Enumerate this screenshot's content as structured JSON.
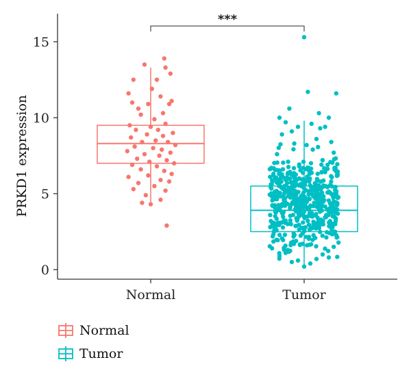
{
  "chart_data": {
    "type": "boxplot",
    "ylabel": "PRKD1 expression",
    "xlabel": "",
    "ylim": [
      0,
      16
    ],
    "yticks": [
      0,
      5,
      10,
      15
    ],
    "categories": [
      "Normal",
      "Tumor"
    ],
    "significance": {
      "label": "***",
      "between": [
        "Normal",
        "Tumor"
      ],
      "y": 16.3
    },
    "series": [
      {
        "name": "Normal",
        "color": "#F8766D",
        "box": {
          "q1": 7.0,
          "median": 8.3,
          "q3": 9.5,
          "whisker_low": 4.3,
          "whisker_high": 13.3
        },
        "points": [
          [
            -0.05,
            13.5
          ],
          [
            0.11,
            13.9
          ],
          [
            -0.14,
            12.5
          ],
          [
            0.12,
            13.3
          ],
          [
            0.05,
            12.5
          ],
          [
            0.16,
            12.9
          ],
          [
            -0.18,
            11.6
          ],
          [
            0.01,
            11.9
          ],
          [
            0.17,
            11.1
          ],
          [
            0.08,
            11.4
          ],
          [
            -0.15,
            11.0
          ],
          [
            -0.02,
            10.9
          ],
          [
            0.15,
            10.9
          ],
          [
            -0.1,
            10.6
          ],
          [
            0.1,
            10.3
          ],
          [
            -0.08,
            10.2
          ],
          [
            0.03,
            9.9
          ],
          [
            -0.17,
            9.5
          ],
          [
            0.12,
            9.6
          ],
          [
            0.0,
            9.4
          ],
          [
            -0.12,
            9.2
          ],
          [
            0.06,
            9.2
          ],
          [
            0.18,
            9.0
          ],
          [
            -0.03,
            8.9
          ],
          [
            0.1,
            8.8
          ],
          [
            -0.16,
            8.7
          ],
          [
            0.04,
            8.5
          ],
          [
            0.14,
            8.4
          ],
          [
            -0.07,
            8.4
          ],
          [
            0.2,
            8.2
          ],
          [
            -0.13,
            8.1
          ],
          [
            0.02,
            8.0
          ],
          [
            0.09,
            7.9
          ],
          [
            -0.19,
            7.8
          ],
          [
            0.16,
            7.7
          ],
          [
            -0.05,
            7.6
          ],
          [
            0.07,
            7.5
          ],
          [
            -0.11,
            7.3
          ],
          [
            0.13,
            7.2
          ],
          [
            -0.01,
            7.1
          ],
          [
            0.19,
            7.0
          ],
          [
            -0.15,
            6.9
          ],
          [
            0.05,
            6.8
          ],
          [
            -0.08,
            6.6
          ],
          [
            0.11,
            6.5
          ],
          [
            0.17,
            6.3
          ],
          [
            -0.02,
            6.2
          ],
          [
            -0.18,
            6.1
          ],
          [
            0.08,
            5.9
          ],
          [
            -0.1,
            5.7
          ],
          [
            0.15,
            5.8
          ],
          [
            0.03,
            5.5
          ],
          [
            -0.14,
            5.3
          ],
          [
            0.12,
            5.2
          ],
          [
            -0.04,
            4.9
          ],
          [
            0.08,
            4.6
          ],
          [
            -0.07,
            4.4
          ],
          [
            0.0,
            4.3
          ],
          [
            0.13,
            2.9
          ]
        ]
      },
      {
        "name": "Tumor",
        "color": "#00BFC4",
        "box": {
          "q1": 2.5,
          "median": 3.9,
          "q3": 5.5,
          "whisker_low": 0.1,
          "whisker_high": 9.8
        },
        "points": [
          [
            0.0,
            15.3
          ],
          [
            0.03,
            11.7
          ],
          [
            0.26,
            11.6
          ],
          [
            -0.12,
            10.6
          ],
          [
            0.12,
            10.3
          ],
          [
            -0.2,
            10.0
          ],
          [
            0.2,
            10.0
          ],
          [
            -0.15,
            9.7
          ],
          [
            0.06,
            9.6
          ],
          [
            -0.05,
            9.4
          ],
          [
            0.17,
            9.4
          ],
          [
            -0.1,
            9.1
          ],
          [
            0.13,
            9.3
          ],
          [
            -0.18,
            8.9
          ],
          [
            0.1,
            8.6
          ],
          [
            0.22,
            8.4
          ],
          [
            -0.08,
            8.3
          ],
          [
            0.02,
            8.2
          ],
          [
            0.07,
            7.9
          ],
          [
            0.24,
            7.7
          ],
          [
            -0.22,
            7.6
          ],
          [
            0.15,
            7.2
          ],
          [
            -0.13,
            7.1
          ],
          [
            0.19,
            6.9
          ],
          [
            -0.04,
            6.8
          ],
          [
            0.25,
            6.7
          ],
          [
            0.04,
            6.5
          ],
          [
            -0.25,
            6.2
          ],
          [
            -0.2,
            0.9
          ],
          [
            0.2,
            0.8
          ],
          [
            -0.05,
            0.6
          ],
          [
            0.05,
            0.4
          ],
          [
            0.0,
            0.2
          ],
          [
            -0.15,
            1.1
          ],
          [
            0.15,
            1.0
          ],
          [
            -0.26,
            1.4
          ],
          [
            0.24,
            1.5
          ],
          [
            0.1,
            0.7
          ],
          [
            -0.1,
            0.5
          ]
        ]
      }
    ]
  }
}
